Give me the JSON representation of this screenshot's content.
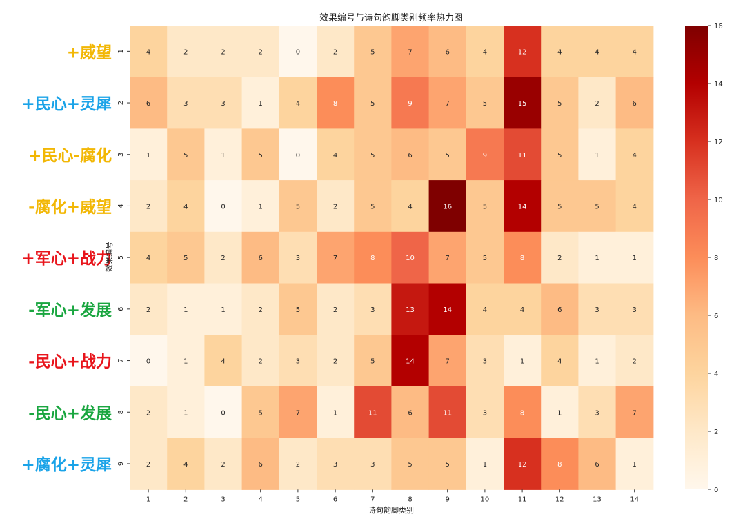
{
  "chart_data": {
    "type": "heatmap",
    "title": "效果编号与诗句韵脚类别频率热力图",
    "xlabel": "诗句韵脚类别",
    "ylabel": "效果编号",
    "x_categories": [
      "1",
      "2",
      "3",
      "4",
      "5",
      "6",
      "7",
      "8",
      "9",
      "10",
      "11",
      "12",
      "13",
      "14"
    ],
    "y_categories": [
      "1",
      "2",
      "3",
      "4",
      "5",
      "6",
      "7",
      "8",
      "9"
    ],
    "values": [
      [
        4,
        2,
        2,
        2,
        0,
        2,
        5,
        7,
        6,
        4,
        12,
        4,
        4,
        4
      ],
      [
        6,
        3,
        3,
        1,
        4,
        8,
        5,
        9,
        7,
        5,
        15,
        5,
        2,
        6
      ],
      [
        1,
        5,
        1,
        5,
        0,
        4,
        5,
        6,
        5,
        9,
        11,
        5,
        1,
        4
      ],
      [
        2,
        4,
        0,
        1,
        5,
        2,
        5,
        4,
        16,
        5,
        14,
        5,
        5,
        4
      ],
      [
        4,
        5,
        2,
        6,
        3,
        7,
        8,
        10,
        7,
        5,
        8,
        2,
        1,
        1
      ],
      [
        2,
        1,
        1,
        2,
        5,
        2,
        3,
        13,
        14,
        4,
        4,
        6,
        3,
        3
      ],
      [
        0,
        1,
        4,
        2,
        3,
        2,
        5,
        14,
        7,
        3,
        1,
        4,
        1,
        2
      ],
      [
        2,
        1,
        0,
        5,
        7,
        1,
        11,
        6,
        11,
        3,
        8,
        1,
        3,
        7
      ],
      [
        2,
        4,
        2,
        6,
        2,
        3,
        3,
        5,
        5,
        1,
        12,
        8,
        6,
        1
      ]
    ],
    "colorbar": {
      "min": 0,
      "max": 16,
      "ticks": [
        "0",
        "2",
        "4",
        "6",
        "8",
        "10",
        "12",
        "14",
        "16"
      ],
      "colormap": "OrRd"
    },
    "row_annotations": [
      {
        "text": "+威望",
        "color": "#f2b705"
      },
      {
        "text": "+民心+灵犀",
        "color": "#1aa3e8"
      },
      {
        "text": "+民心-腐化",
        "color": "#f2b705"
      },
      {
        "text": "-腐化+威望",
        "color": "#f2b705"
      },
      {
        "text": "+军心+战力",
        "color": "#e8141b"
      },
      {
        "text": "-军心+发展",
        "color": "#1aa640"
      },
      {
        "text": "-民心+战力",
        "color": "#e8141b"
      },
      {
        "text": "-民心+发展",
        "color": "#1aa640"
      },
      {
        "text": "+腐化+灵犀",
        "color": "#1aa3e8"
      }
    ]
  }
}
